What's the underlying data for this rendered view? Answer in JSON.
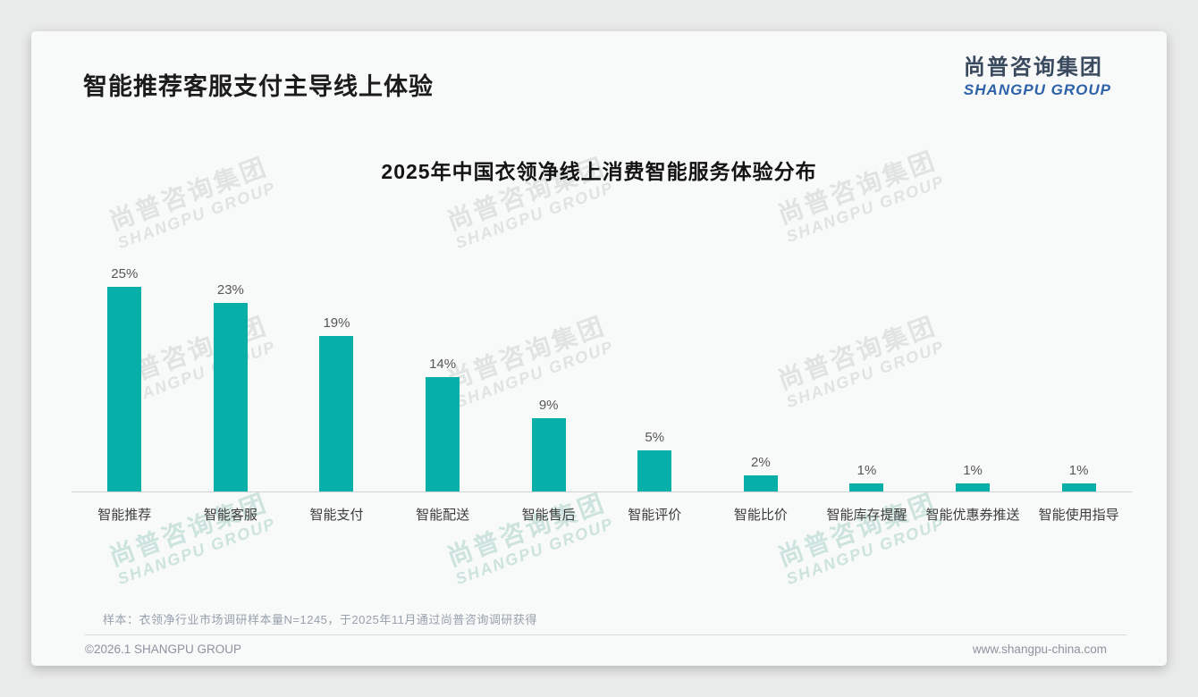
{
  "page": {
    "title": "智能推荐客服支付主导线上体验",
    "logo": {
      "cn": "尚普咨询集团",
      "en": "SHANGPU GROUP"
    },
    "watermark": {
      "cn": "尚普咨询集团",
      "en": "SHANGPU GROUP"
    },
    "footer": {
      "sample_note": "样本：衣领净行业市场调研样本量N=1245，于2025年11月通过尚普咨询调研获得",
      "copyright": "©2026.1 SHANGPU GROUP",
      "website": "www.shangpu-china.com"
    }
  },
  "chart_data": {
    "type": "bar",
    "title": "2025年中国衣领净线上消费智能服务体验分布",
    "categories": [
      "智能推荐",
      "智能客服",
      "智能支付",
      "智能配送",
      "智能售后",
      "智能评价",
      "智能比价",
      "智能库存提醒",
      "智能优惠券推送",
      "智能使用指导"
    ],
    "values": [
      25,
      23,
      19,
      14,
      9,
      5,
      2,
      1,
      1,
      1
    ],
    "unit": "%",
    "value_labels": [
      "25%",
      "23%",
      "19%",
      "14%",
      "9%",
      "5%",
      "2%",
      "1%",
      "1%",
      "1%"
    ],
    "bar_color": "#06b0a9",
    "xlabel": "",
    "ylabel": "",
    "ylim": [
      0,
      27
    ],
    "grid": false,
    "legend": false,
    "data_labels_position": "above-bars"
  }
}
